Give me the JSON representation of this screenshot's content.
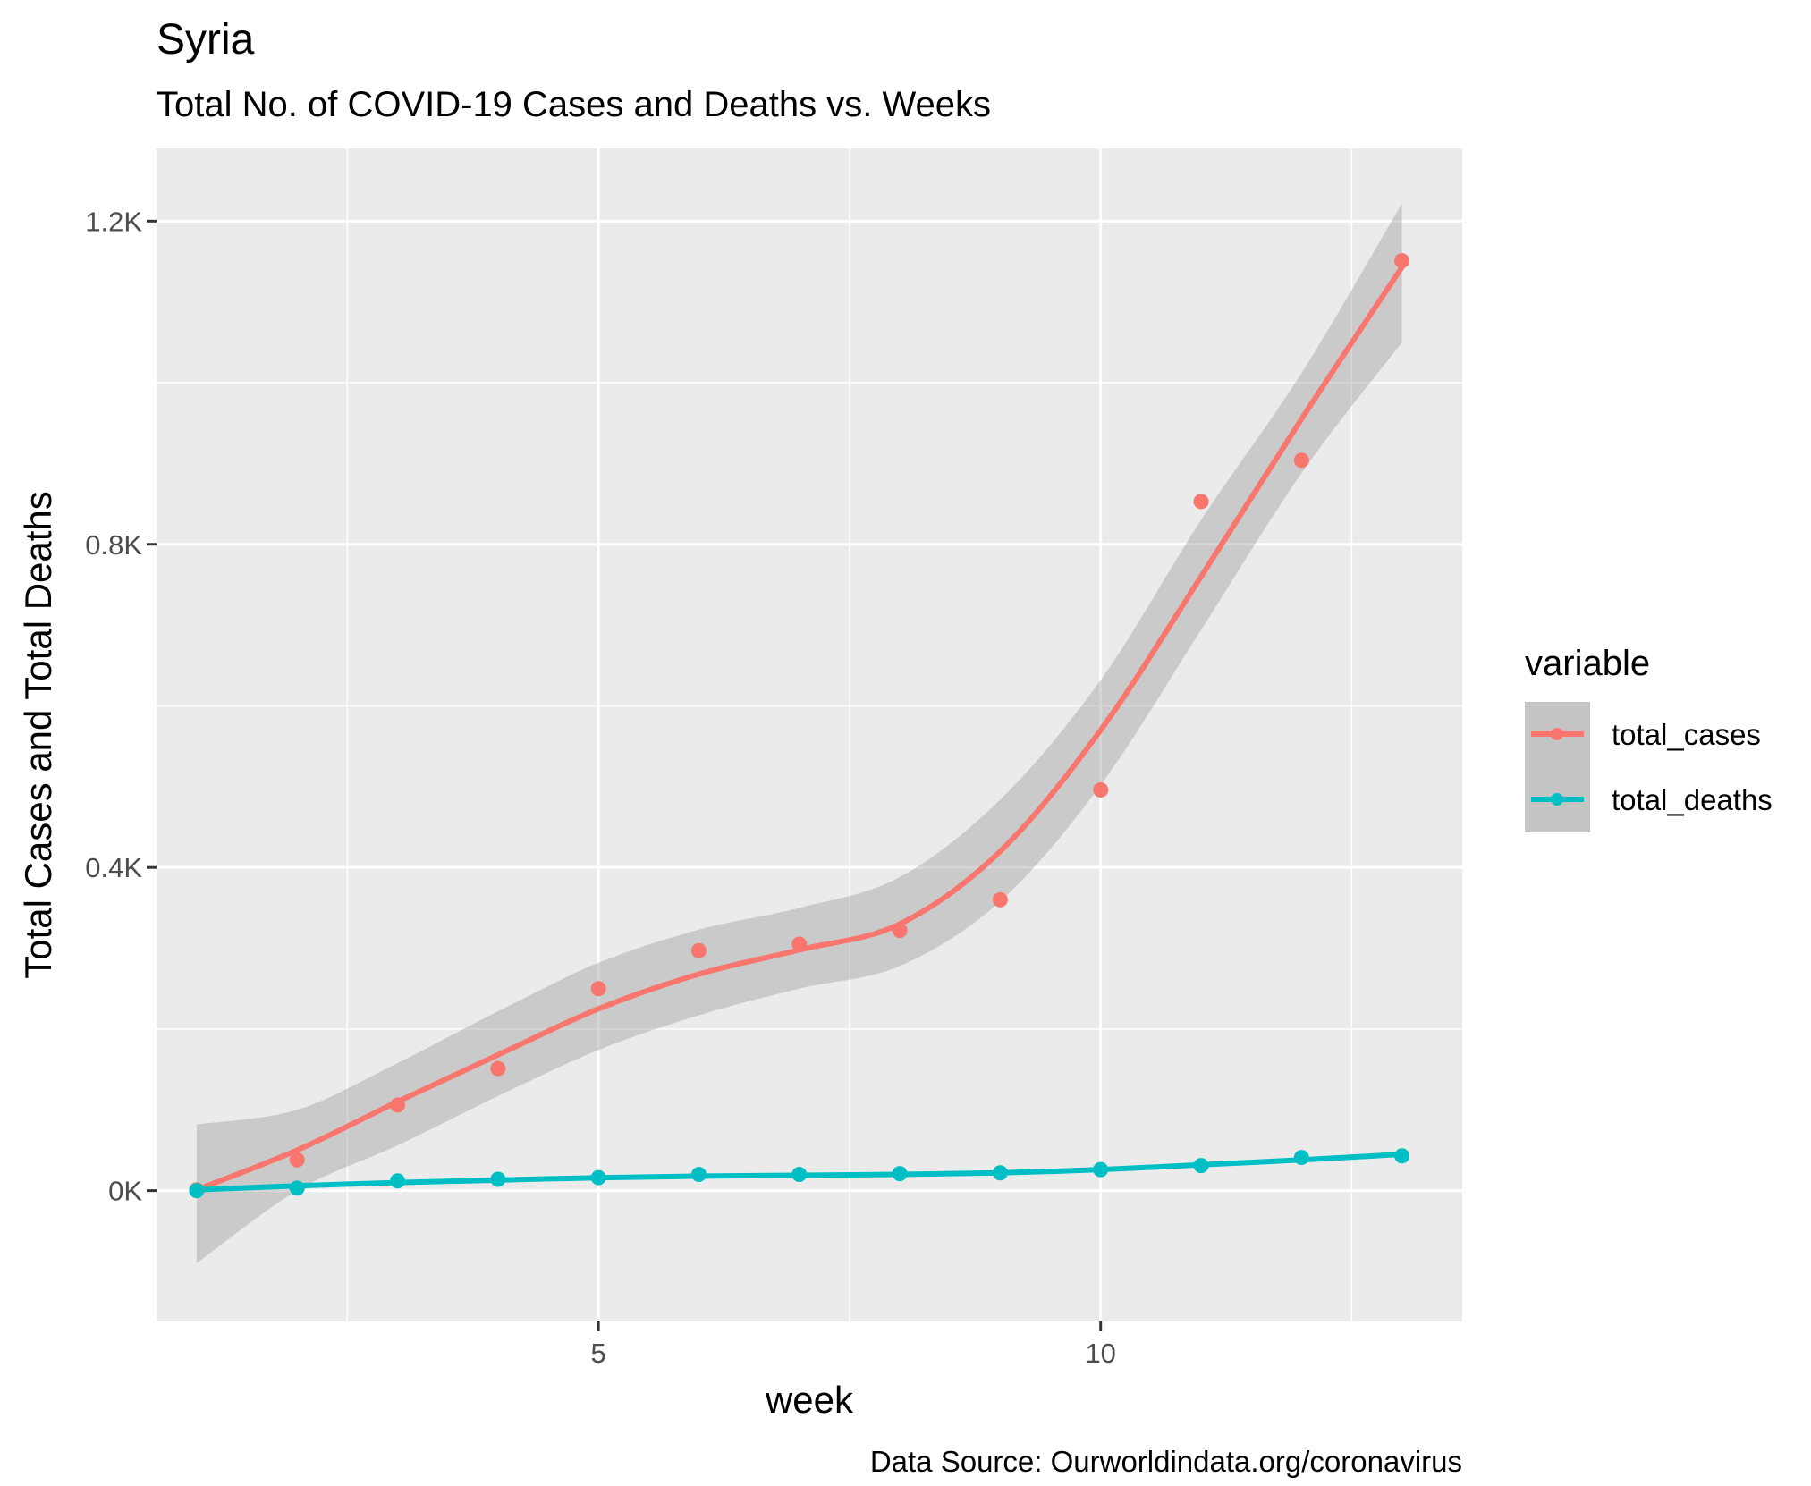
{
  "chart_data": {
    "type": "line",
    "title": "Syria",
    "subtitle": "Total No. of COVID-19 Cases and Deaths vs. Weeks",
    "xlabel": "week",
    "ylabel": "Total Cases and Total Deaths",
    "caption": "Data Source: Ourworldindata.org/coronavirus",
    "xlim": [
      0.6,
      13.6
    ],
    "ylim": [
      -162,
      1290
    ],
    "x_ticks": [
      5,
      10
    ],
    "x_tick_labels": [
      "5",
      "10"
    ],
    "y_ticks": [
      0,
      400,
      800,
      1200
    ],
    "y_tick_labels": [
      "0K",
      "0.4K",
      "0.8K",
      "1.2K"
    ],
    "grid": true,
    "legend": {
      "title": "variable",
      "position": "right",
      "entries": [
        "total_cases",
        "total_deaths"
      ]
    },
    "colors": {
      "total_cases": "#F8766D",
      "total_deaths": "#00BFC4",
      "panel": "#EBEBEB",
      "band": "#C4C4C4"
    },
    "x": [
      1,
      2,
      3,
      4,
      5,
      6,
      7,
      8,
      9,
      10,
      11,
      12,
      13
    ],
    "series": [
      {
        "name": "total_cases",
        "values": [
          1,
          38,
          106,
          151,
          250,
          297,
          305,
          322,
          360,
          496,
          853,
          904,
          1151
        ],
        "smooth": [
          1,
          50,
          110,
          168,
          225,
          268,
          298,
          330,
          420,
          570,
          760,
          955,
          1143
        ],
        "band_lower": [
          -90,
          0,
          56,
          117,
          174,
          217,
          250,
          278,
          358,
          502,
          694,
          888,
          1050
        ],
        "band_upper": [
          82,
          100,
          158,
          222,
          282,
          323,
          350,
          388,
          484,
          632,
          830,
          1012,
          1222
        ]
      },
      {
        "name": "total_deaths",
        "values": [
          0,
          3,
          12,
          14,
          16,
          20,
          20,
          21,
          22,
          26,
          31,
          41,
          43
        ],
        "smooth": [
          1,
          6,
          10,
          13,
          16,
          18,
          19,
          20,
          22,
          26,
          32,
          38,
          45
        ]
      }
    ]
  }
}
